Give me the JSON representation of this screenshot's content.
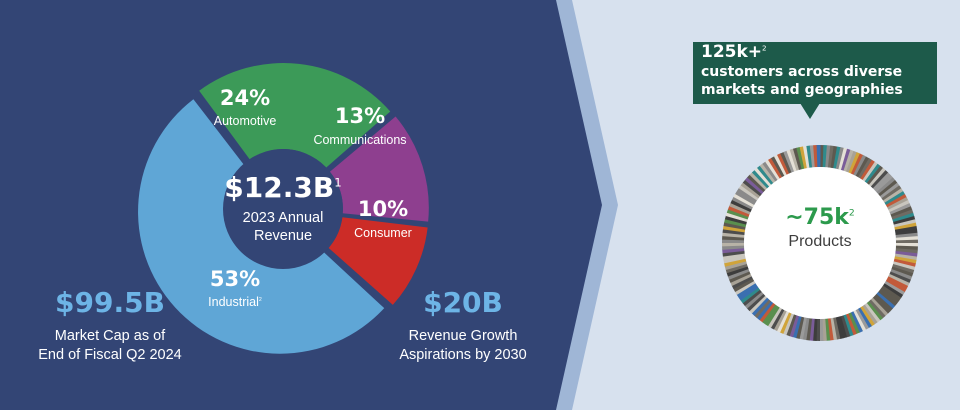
{
  "chart_data": {
    "type": "pie",
    "center_value": "$12.3B",
    "center_footnote": "1",
    "center_caption_line1": "2023 Annual",
    "center_caption_line2": "Revenue",
    "slices": [
      {
        "label": "Automotive",
        "percent": 24,
        "percent_text": "24%",
        "color": "#3c9a58",
        "footnote": ""
      },
      {
        "label": "Communications",
        "percent": 13,
        "percent_text": "13%",
        "color": "#8e3f8f",
        "footnote": ""
      },
      {
        "label": "Consumer",
        "percent": 10,
        "percent_text": "10%",
        "color": "#cc2c27",
        "footnote": ""
      },
      {
        "label": "Industrial",
        "percent": 53,
        "percent_text": "53%",
        "color": "#5fa6d6",
        "footnote": "2"
      }
    ]
  },
  "stats": {
    "market_cap": {
      "value": "$99.5B",
      "line1": "Market Cap as of",
      "line2": "End of Fiscal Q2 2024"
    },
    "growth": {
      "value": "$20B",
      "line1": "Revenue Growth",
      "line2": "Aspirations by 2030"
    }
  },
  "customers": {
    "value": "125k+",
    "footnote": "2",
    "line1": "customers across diverse",
    "line2": "markets and geographies",
    "box_color": "#1d5a4a"
  },
  "products": {
    "value": "~75k",
    "footnote": "2",
    "label": "Products",
    "value_color": "#2c9a4c"
  },
  "colors": {
    "left_panel": "#334575",
    "right_panel": "#d7e1ee",
    "chevron": "#9fb6d6",
    "stat_blue": "#6db4e6",
    "ring_palette": [
      "#4d4d4d",
      "#8a8a8a",
      "#c9c6be",
      "#6f6b63",
      "#a8a296",
      "#3d3d3d",
      "#b8b3a7",
      "#5d5950",
      "#2f8a8c",
      "#7a5c99",
      "#c25a3a",
      "#5a8f4e",
      "#d0a43a",
      "#3a6fb0",
      "#e4e0d6",
      "#9a9a9a"
    ]
  }
}
